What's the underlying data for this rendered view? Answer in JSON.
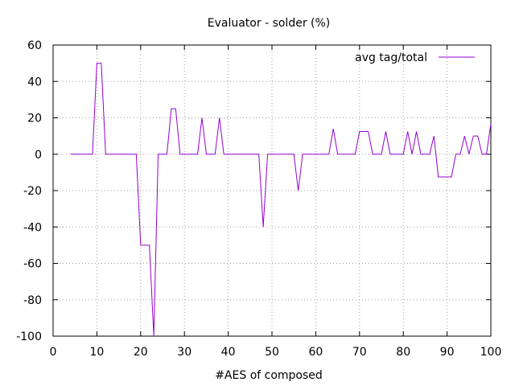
{
  "chart_data": {
    "type": "line",
    "title": "Evaluator - solder (%)",
    "xlabel": "#AES of composed",
    "ylabel": "",
    "xlim": [
      0,
      100
    ],
    "ylim": [
      -100,
      60
    ],
    "xticks": [
      0,
      10,
      20,
      30,
      40,
      50,
      60,
      70,
      80,
      90,
      100
    ],
    "yticks": [
      -100,
      -80,
      -60,
      -40,
      -20,
      0,
      20,
      40,
      60
    ],
    "grid": true,
    "legend_position": "top-right",
    "series": [
      {
        "name": "avg tag/total",
        "color": "#9400d3",
        "x": [
          4,
          5,
          6,
          7,
          8,
          9,
          10,
          11,
          12,
          13,
          14,
          15,
          16,
          17,
          18,
          19,
          20,
          21,
          22,
          23,
          24,
          25,
          26,
          27,
          28,
          29,
          30,
          31,
          32,
          33,
          34,
          35,
          36,
          37,
          38,
          39,
          40,
          41,
          42,
          43,
          44,
          45,
          46,
          47,
          48,
          49,
          50,
          51,
          52,
          53,
          54,
          55,
          56,
          57,
          58,
          59,
          60,
          61,
          62,
          63,
          64,
          65,
          66,
          67,
          68,
          69,
          70,
          71,
          72,
          73,
          74,
          75,
          76,
          77,
          78,
          79,
          80,
          81,
          82,
          83,
          84,
          85,
          86,
          87,
          88,
          89,
          90,
          91,
          92,
          93,
          94,
          95,
          96,
          97,
          98,
          99,
          100
        ],
        "y": [
          0,
          0,
          0,
          0,
          0,
          0,
          50,
          50,
          0,
          0,
          0,
          0,
          0,
          0,
          0,
          0,
          -50,
          -50,
          -50,
          -100,
          0,
          0,
          0,
          25,
          25,
          0,
          0,
          0,
          0,
          0,
          20,
          0,
          0,
          0,
          20,
          0,
          0,
          0,
          0,
          0,
          0,
          0,
          0,
          0,
          -40,
          0,
          0,
          0,
          0,
          0,
          0,
          0,
          -20,
          0,
          0,
          0,
          0,
          0,
          0,
          0,
          14,
          0,
          0,
          0,
          0,
          0,
          12.5,
          12.5,
          12.5,
          0,
          0,
          0,
          12.5,
          0,
          0,
          0,
          0,
          12.5,
          0,
          12.5,
          0,
          0,
          0,
          10,
          -12.5,
          -12.5,
          -12.5,
          -12.5,
          0,
          0,
          10,
          0,
          10,
          10,
          0,
          0,
          16.7
        ]
      }
    ]
  }
}
